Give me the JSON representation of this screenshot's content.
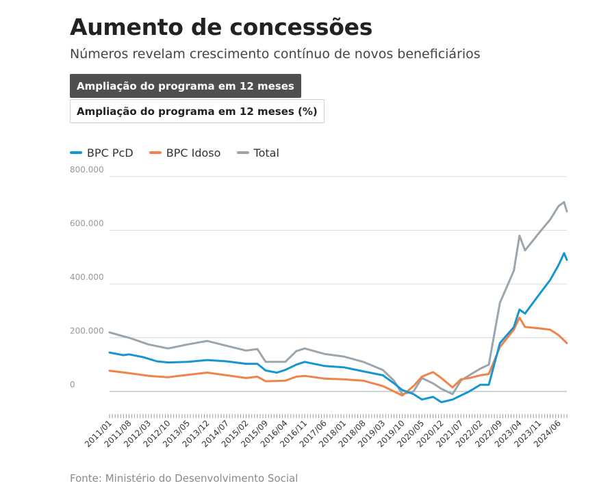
{
  "header": {
    "title": "Aumento de concessões",
    "subtitle": "Números revelam crescimento contínuo de novos beneficiários"
  },
  "tabs": [
    {
      "label": "Ampliação do programa em 12 meses",
      "active": true
    },
    {
      "label": "Ampliação do programa em 12 meses (%)",
      "active": false
    }
  ],
  "source": "Fonte: Ministério do Desenvolvimento Social",
  "colors": {
    "bpc_pcd": "#1596d1",
    "bpc_idoso": "#f0834a",
    "total": "#9aa5ad",
    "grid": "#dddddd",
    "zero_line": "#aaaaaa"
  },
  "chart_data": {
    "type": "line",
    "title": "Aumento de concessões",
    "subtitle": "Números revelam crescimento contínuo de novos beneficiários",
    "xlabel": "",
    "ylabel": "",
    "ylim": [
      -100000,
      800000
    ],
    "grid": "horizontal",
    "legend_position": "top-left",
    "yticks": [
      0,
      200000,
      400000,
      600000,
      800000
    ],
    "ytick_labels": [
      "0",
      "200.000",
      "400.000",
      "600.000",
      "800.000"
    ],
    "xtick_labels": [
      "2011/01",
      "2011/08",
      "2012/03",
      "2012/10",
      "2013/05",
      "2013/12",
      "2014/07",
      "2015/02",
      "2015/09",
      "2016/04",
      "2016/11",
      "2017/06",
      "2018/01",
      "2018/08",
      "2019/03",
      "2019/10",
      "2020/05",
      "2020/12",
      "2021/07",
      "2022/02",
      "2022/09",
      "2023/04",
      "2023/11",
      "2024/06"
    ],
    "x_start": "2011/01",
    "x_end": "2024/09",
    "x_step": "month",
    "series": [
      {
        "name": "BPC PcD",
        "color": "#1596d1",
        "points": [
          [
            "2011/01",
            145000
          ],
          [
            "2011/06",
            135000
          ],
          [
            "2011/08",
            138000
          ],
          [
            "2012/01",
            128000
          ],
          [
            "2012/06",
            112000
          ],
          [
            "2012/10",
            108000
          ],
          [
            "2013/05",
            110000
          ],
          [
            "2013/12",
            117000
          ],
          [
            "2014/07",
            112000
          ],
          [
            "2015/02",
            103000
          ],
          [
            "2015/06",
            103000
          ],
          [
            "2015/09",
            78000
          ],
          [
            "2016/01",
            70000
          ],
          [
            "2016/04",
            80000
          ],
          [
            "2016/08",
            100000
          ],
          [
            "2016/11",
            110000
          ],
          [
            "2017/06",
            95000
          ],
          [
            "2018/01",
            90000
          ],
          [
            "2018/08",
            75000
          ],
          [
            "2019/03",
            60000
          ],
          [
            "2019/07",
            30000
          ],
          [
            "2019/10",
            5000
          ],
          [
            "2020/02",
            -10000
          ],
          [
            "2020/05",
            -30000
          ],
          [
            "2020/09",
            -20000
          ],
          [
            "2020/12",
            -40000
          ],
          [
            "2021/04",
            -30000
          ],
          [
            "2021/07",
            -15000
          ],
          [
            "2021/10",
            0
          ],
          [
            "2022/02",
            25000
          ],
          [
            "2022/05",
            25000
          ],
          [
            "2022/09",
            180000
          ],
          [
            "2023/02",
            240000
          ],
          [
            "2023/04",
            305000
          ],
          [
            "2023/06",
            290000
          ],
          [
            "2023/11",
            360000
          ],
          [
            "2024/03",
            415000
          ],
          [
            "2024/06",
            470000
          ],
          [
            "2024/08",
            515000
          ],
          [
            "2024/09",
            490000
          ]
        ]
      },
      {
        "name": "BPC Idoso",
        "color": "#f0834a",
        "points": [
          [
            "2011/01",
            77000
          ],
          [
            "2011/08",
            68000
          ],
          [
            "2012/03",
            58000
          ],
          [
            "2012/10",
            53000
          ],
          [
            "2013/05",
            62000
          ],
          [
            "2013/12",
            70000
          ],
          [
            "2014/07",
            60000
          ],
          [
            "2015/02",
            50000
          ],
          [
            "2015/06",
            55000
          ],
          [
            "2015/09",
            38000
          ],
          [
            "2016/04",
            40000
          ],
          [
            "2016/08",
            55000
          ],
          [
            "2016/11",
            58000
          ],
          [
            "2017/06",
            48000
          ],
          [
            "2018/01",
            45000
          ],
          [
            "2018/08",
            40000
          ],
          [
            "2019/03",
            20000
          ],
          [
            "2019/07",
            0
          ],
          [
            "2019/10",
            -15000
          ],
          [
            "2020/02",
            20000
          ],
          [
            "2020/05",
            55000
          ],
          [
            "2020/09",
            72000
          ],
          [
            "2020/12",
            50000
          ],
          [
            "2021/04",
            15000
          ],
          [
            "2021/07",
            45000
          ],
          [
            "2021/10",
            50000
          ],
          [
            "2022/02",
            60000
          ],
          [
            "2022/05",
            65000
          ],
          [
            "2022/09",
            165000
          ],
          [
            "2023/02",
            230000
          ],
          [
            "2023/04",
            275000
          ],
          [
            "2023/06",
            240000
          ],
          [
            "2023/11",
            235000
          ],
          [
            "2024/03",
            230000
          ],
          [
            "2024/06",
            210000
          ],
          [
            "2024/09",
            180000
          ]
        ]
      },
      {
        "name": "Total",
        "color": "#9aa5ad",
        "points": [
          [
            "2011/01",
            220000
          ],
          [
            "2011/06",
            205000
          ],
          [
            "2011/08",
            200000
          ],
          [
            "2012/03",
            175000
          ],
          [
            "2012/10",
            160000
          ],
          [
            "2013/05",
            175000
          ],
          [
            "2013/12",
            188000
          ],
          [
            "2014/07",
            170000
          ],
          [
            "2015/02",
            152000
          ],
          [
            "2015/06",
            158000
          ],
          [
            "2015/09",
            110000
          ],
          [
            "2016/04",
            110000
          ],
          [
            "2016/08",
            150000
          ],
          [
            "2016/11",
            160000
          ],
          [
            "2017/06",
            140000
          ],
          [
            "2018/01",
            130000
          ],
          [
            "2018/08",
            110000
          ],
          [
            "2019/03",
            80000
          ],
          [
            "2019/07",
            40000
          ],
          [
            "2019/10",
            -10000
          ],
          [
            "2020/02",
            0
          ],
          [
            "2020/05",
            50000
          ],
          [
            "2020/09",
            30000
          ],
          [
            "2020/12",
            10000
          ],
          [
            "2021/04",
            -10000
          ],
          [
            "2021/07",
            40000
          ],
          [
            "2021/10",
            60000
          ],
          [
            "2022/02",
            85000
          ],
          [
            "2022/05",
            100000
          ],
          [
            "2022/09",
            330000
          ],
          [
            "2023/02",
            450000
          ],
          [
            "2023/04",
            580000
          ],
          [
            "2023/06",
            525000
          ],
          [
            "2023/11",
            590000
          ],
          [
            "2024/03",
            640000
          ],
          [
            "2024/06",
            690000
          ],
          [
            "2024/08",
            705000
          ],
          [
            "2024/09",
            670000
          ]
        ]
      }
    ]
  }
}
